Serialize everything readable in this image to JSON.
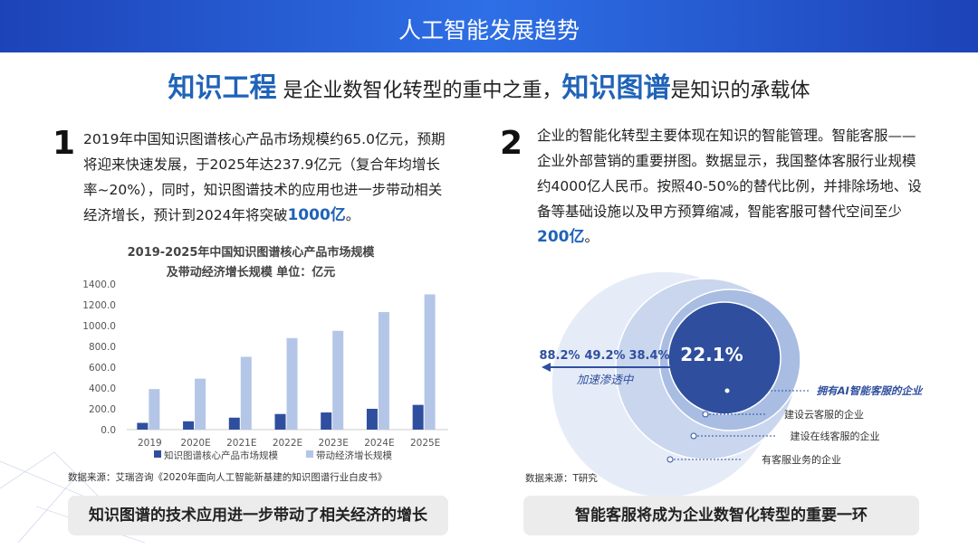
{
  "header": {
    "title": "人工智能发展趋势"
  },
  "headline": {
    "p1": "知识工程",
    "p2": "是企业数智化转型的重中之重，",
    "p3": "知识图谱",
    "p4": "是知识的承载体"
  },
  "left": {
    "number": "1",
    "text": "2019年中国知识图谱核心产品市场规模约65.0亿元，预期将迎来快速发展，于2025年达237.9亿元（复合年均增长率~20%），同时，知识图谱技术的应用也进一步带动相关经济增长，预计到2024年将突破",
    "highlight": "1000亿",
    "end": "。",
    "source": "数据来源：艾瑞咨询《2020年面向人工智能新基建的知识图谱行业白皮书》",
    "summary": "知识图谱的技术应用进一步带动了相关经济的增长"
  },
  "chart_data": {
    "type": "bar",
    "title": "2019-2025年中国知识图谱核心产品市场规模",
    "subtitle": "及带动经济增长规模 单位：亿元",
    "categories": [
      "2019",
      "2020E",
      "2021E",
      "2022E",
      "2023E",
      "2024E",
      "2025E"
    ],
    "series": [
      {
        "name": "知识图谱核心产品市场规模",
        "color": "#2f4f9e",
        "values": [
          65.0,
          80,
          115,
          150,
          165,
          200,
          237.9
        ]
      },
      {
        "name": "带动经济增长规模",
        "color": "#b4c6e7",
        "values": [
          390,
          490,
          700,
          880,
          950,
          1130,
          1300
        ]
      }
    ],
    "ylim": [
      0,
      1400
    ],
    "yticks": [
      {
        "value": 0,
        "label": "0.0"
      },
      {
        "value": 200,
        "label": "200.0"
      },
      {
        "value": 400,
        "label": "400.0"
      },
      {
        "value": 600,
        "label": "600.0"
      },
      {
        "value": 800,
        "label": "800.0"
      },
      {
        "value": 1000,
        "label": "1000.0"
      },
      {
        "value": 1200,
        "label": "1200.0"
      },
      {
        "value": 1400,
        "label": "1400.0"
      }
    ],
    "legend": "bottom"
  },
  "right": {
    "number": "2",
    "text": "企业的智能化转型主要体现在知识的智能管理。智能客服——企业外部营销的重要拼图。数据显示，我国整体客服行业规模约4000亿人民币。按照40-50%的替代比例，并排除场地、设备等基础设施以及甲方预算缩减，智能客服可替代空间至少",
    "highlight": "200亿",
    "end": "。",
    "source": "数据来源：T研究",
    "summary": "智能客服将成为企业数智化转型的重要一环"
  },
  "diagram": {
    "arrow_label": "加速渗透中",
    "rings": [
      {
        "value": "22.1%",
        "label": "拥有AI智能客服的企业"
      },
      {
        "value": "38.4%",
        "label": "建设云客服的企业"
      },
      {
        "value": "49.2%",
        "label": "建设在线客服的企业"
      },
      {
        "value": "88.2%",
        "label": "有客服业务的企业"
      }
    ]
  }
}
